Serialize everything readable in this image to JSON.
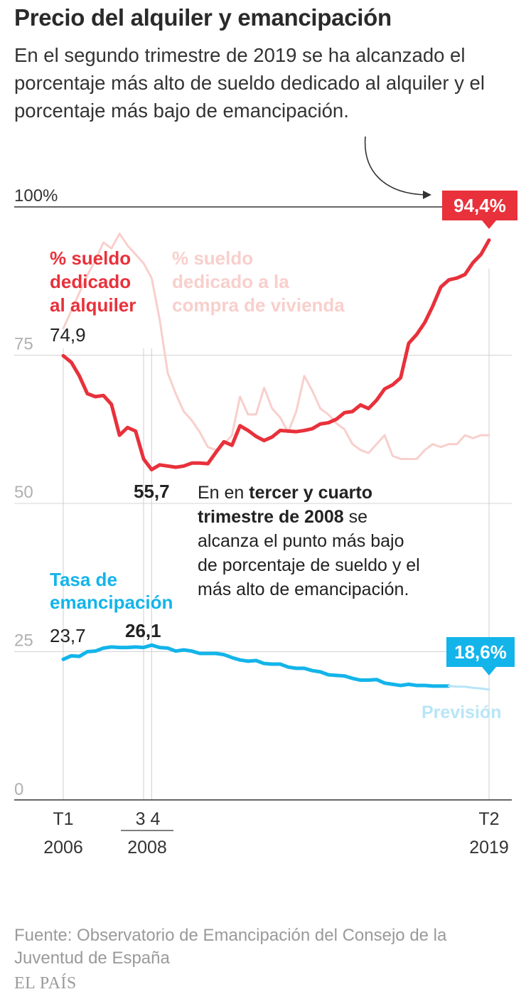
{
  "title": "Precio del alquiler y emancipación",
  "subtitle": "En el segundo trimestre de 2019 se ha alcanzado el porcentaje más alto de sueldo dedicado al alquiler y el porcentaje más bajo de emancipación.",
  "source": "Fuente: Observatorio de Emancipación del Consejo de la Juventud de España",
  "brand": "EL PAÍS",
  "colors": {
    "rent": "#e8313b",
    "purchase": "#f8cfcc",
    "emancipation": "#13b4ea",
    "forecast": "#b8e5f7",
    "grid": "#d4d4d4",
    "axis": "#333333"
  },
  "chart_data": {
    "type": "line",
    "ylim": [
      0,
      100
    ],
    "y_ticks": [
      "100%",
      "75",
      "50",
      "25",
      "0"
    ],
    "x_tick_labels": [
      {
        "top": "T1",
        "bottom": "2006"
      },
      {
        "top": "3 4",
        "bottom": "2008"
      },
      {
        "top": "T2",
        "bottom": "2019"
      }
    ],
    "x": [
      "2006-T1",
      "2006-T2",
      "2006-T3",
      "2006-T4",
      "2007-T1",
      "2007-T2",
      "2007-T3",
      "2007-T4",
      "2008-T1",
      "2008-T2",
      "2008-T3",
      "2008-T4",
      "2009-T1",
      "2009-T2",
      "2009-T3",
      "2009-T4",
      "2010-T1",
      "2010-T2",
      "2010-T3",
      "2010-T4",
      "2011-T1",
      "2011-T2",
      "2011-T3",
      "2011-T4",
      "2012-T1",
      "2012-T2",
      "2012-T3",
      "2012-T4",
      "2013-T1",
      "2013-T2",
      "2013-T3",
      "2013-T4",
      "2014-T1",
      "2014-T2",
      "2014-T3",
      "2014-T4",
      "2015-T1",
      "2015-T2",
      "2015-T3",
      "2015-T4",
      "2016-T1",
      "2016-T2",
      "2016-T3",
      "2016-T4",
      "2017-T1",
      "2017-T2",
      "2017-T3",
      "2017-T4",
      "2018-T1",
      "2018-T2",
      "2018-T3",
      "2018-T4",
      "2019-T1",
      "2019-T2"
    ],
    "series": [
      {
        "name": "% sueldo dedicado a la compra de vivienda",
        "values": [
          79.5,
          82.5,
          85.5,
          88.5,
          91,
          94,
          93,
          95.5,
          93.5,
          92,
          90.5,
          88,
          81,
          72,
          68.5,
          65.5,
          64,
          62,
          59.5,
          59,
          60,
          61.5,
          68,
          65,
          65,
          69.5,
          66,
          64.5,
          62,
          65.5,
          71.5,
          69,
          66,
          65,
          63.5,
          62.5,
          60,
          59,
          58.5,
          60,
          61.5,
          58,
          57.5,
          57.5,
          57.5,
          59,
          60,
          59.5,
          60,
          60,
          61.5,
          61,
          61.5,
          61.5
        ]
      },
      {
        "name": "% sueldo dedicado al alquiler",
        "values": [
          74.9,
          73.8,
          71.5,
          68.5,
          68,
          68.2,
          66.7,
          61.5,
          62.8,
          62.2,
          57.5,
          55.7,
          56.5,
          56.3,
          56.1,
          56.3,
          56.8,
          56.8,
          56.7,
          58.6,
          60.4,
          59.8,
          63.1,
          62.3,
          61.3,
          60.6,
          61.2,
          62.3,
          62.2,
          62.1,
          62.3,
          62.6,
          63.4,
          63.6,
          64.2,
          65.3,
          65.5,
          66.6,
          66,
          67.4,
          69.3,
          70,
          71.2,
          77,
          78.5,
          80.5,
          83.3,
          86.5,
          87.7,
          88,
          88.6,
          90.6,
          92,
          94.4
        ]
      },
      {
        "name": "Tasa de emancipación",
        "values": [
          23.7,
          24.3,
          24.2,
          25,
          25.1,
          25.6,
          25.8,
          25.7,
          25.7,
          25.8,
          25.7,
          26.1,
          25.7,
          25.6,
          25.1,
          25.3,
          25.1,
          24.7,
          24.7,
          24.7,
          24.5,
          24,
          23.6,
          23.4,
          23.5,
          23,
          22.9,
          22.9,
          22.4,
          22.2,
          22.2,
          21.8,
          21.6,
          21.1,
          21,
          20.9,
          20.5,
          20.2,
          20.2,
          20.3,
          19.7,
          19.5,
          19.3,
          19.5,
          19.3,
          19.3,
          19.2,
          19.2,
          19.2,
          19.1,
          19.1,
          18.9,
          18.8,
          18.6
        ]
      }
    ],
    "forecast_from_index": 48,
    "callouts": {
      "rent_end": "94,4%",
      "emancipation_end": "18,6%",
      "rent_start": "74,9",
      "rent_min": "55,7",
      "emancipation_start": "23,7",
      "emancipation_max": "26,1",
      "forecast": "Previsión"
    },
    "series_labels": {
      "rent": [
        "% sueldo",
        "dedicado",
        "al alquiler"
      ],
      "purchase": [
        "% sueldo",
        "dedicado a la",
        "compra de vivienda"
      ],
      "emancipation": [
        "Tasa de",
        "emancipación"
      ]
    },
    "annotation": {
      "line1_pre": "En en ",
      "line1_bold": "tercer y cuarto",
      "line2_bold": "trimestre de 2008",
      "line2_post": " se",
      "line3": "alcanza el punto más bajo",
      "line4": "de porcentaje de sueldo y el",
      "line5": "más alto de emancipación."
    }
  }
}
